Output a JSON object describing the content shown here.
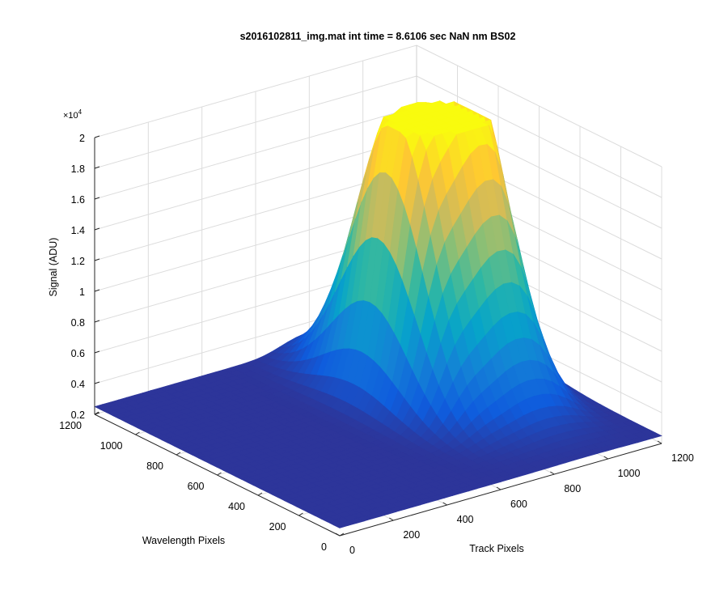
{
  "chart_data": {
    "type": "surface",
    "title": "s2016102811_img.mat int time = 8.6106 sec  NaN nm BS02",
    "xlabel": "Track Pixels",
    "ylabel": "Wavelength Pixels",
    "zlabel": "Signal (ADU)",
    "z_exponent_label": "×10",
    "z_exponent_power": "4",
    "xlim": [
      0,
      1200
    ],
    "ylim": [
      0,
      1200
    ],
    "zlim": [
      0.2,
      2
    ],
    "z_scale_multiplier": 10000,
    "grid": true,
    "colormap": "parula",
    "colors": [
      "#352a87",
      "#0f5cdd",
      "#1481d6",
      "#06a4ca",
      "#2eb7a4",
      "#87bf77",
      "#d1bb59",
      "#fec832",
      "#f9fb0e"
    ],
    "x_ticks": [
      {
        "value": 0,
        "label": "0"
      },
      {
        "value": 200,
        "label": "200"
      },
      {
        "value": 400,
        "label": "400"
      },
      {
        "value": 600,
        "label": "600"
      },
      {
        "value": 800,
        "label": "800"
      },
      {
        "value": 1000,
        "label": "1000"
      },
      {
        "value": 1200,
        "label": "1200"
      }
    ],
    "y_ticks": [
      {
        "value": 0,
        "label": "0"
      },
      {
        "value": 200,
        "label": "200"
      },
      {
        "value": 400,
        "label": "400"
      },
      {
        "value": 600,
        "label": "600"
      },
      {
        "value": 800,
        "label": "800"
      },
      {
        "value": 1000,
        "label": "1000"
      },
      {
        "value": 1200,
        "label": "1200"
      }
    ],
    "z_ticks": [
      {
        "value": 0.2,
        "label": "0.2"
      },
      {
        "value": 0.4,
        "label": "0.4"
      },
      {
        "value": 0.6,
        "label": "0.6"
      },
      {
        "value": 0.8,
        "label": "0.8"
      },
      {
        "value": 1.0,
        "label": "1"
      },
      {
        "value": 1.2,
        "label": "1.2"
      },
      {
        "value": 1.4,
        "label": "1.4"
      },
      {
        "value": 1.6,
        "label": "1.6"
      },
      {
        "value": 1.8,
        "label": "1.8"
      },
      {
        "value": 2.0,
        "label": "2"
      }
    ],
    "baseline": 0.25,
    "peaks": [
      {
        "track_center": 760,
        "track_width": 75,
        "wavelength_center": 720,
        "wavelength_width": 190,
        "height": 1.6
      },
      {
        "track_center": 900,
        "track_width": 75,
        "wavelength_center": 700,
        "wavelength_width": 200,
        "height": 1.65
      },
      {
        "track_center": 1020,
        "track_width": 70,
        "wavelength_center": 690,
        "wavelength_width": 190,
        "height": 1.5
      }
    ]
  }
}
